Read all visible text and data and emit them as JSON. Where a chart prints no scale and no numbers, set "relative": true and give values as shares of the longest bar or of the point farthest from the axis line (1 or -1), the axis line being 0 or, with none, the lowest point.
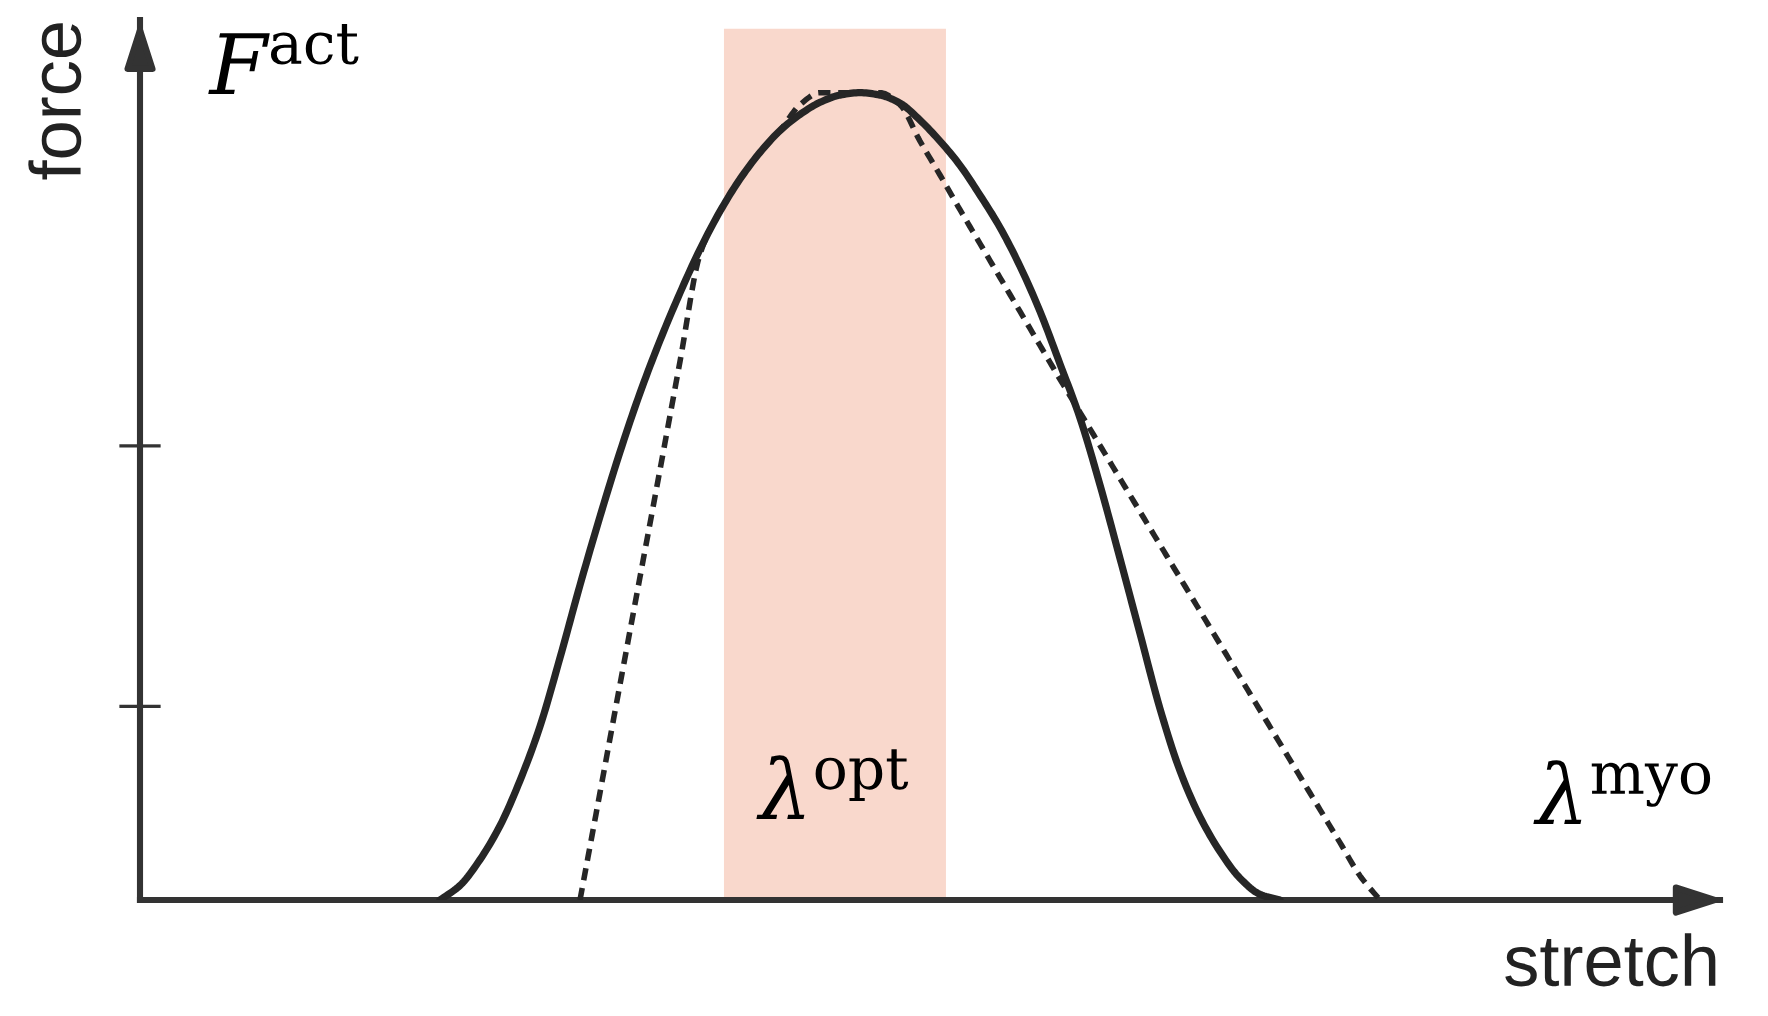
{
  "chart_data": {
    "type": "line",
    "relative": true,
    "ylabel": "force",
    "xlabel": "stretch",
    "annotations": [
      "F$^{act}$",
      "λ$^{opt}$",
      "λ$^{myo}$"
    ],
    "categories": [
      null,
      null,
      null,
      null,
      null,
      null,
      null,
      null,
      null,
      null,
      null,
      null,
      null,
      null,
      null,
      null,
      null,
      null,
      null,
      null,
      null,
      null,
      null,
      null,
      null,
      null,
      null,
      null,
      null,
      null,
      null,
      null,
      null,
      null,
      null,
      null,
      null,
      null,
      null,
      null,
      null,
      null,
      null,
      null,
      null,
      null,
      null,
      null,
      null,
      null,
      null,
      null,
      null,
      null,
      null,
      null,
      null,
      null,
      null,
      null,
      null,
      null,
      null,
      null,
      null,
      null,
      null,
      null,
      null,
      null,
      null,
      null,
      null,
      null,
      null,
      null,
      null,
      null,
      null,
      null
    ],
    "series": [
      {
        "color": "#262626",
        "line_style": "solid",
        "values": [
          null,
          null,
          null,
          null,
          null,
          null,
          null,
          null,
          null,
          null,
          null,
          null,
          null,
          null,
          null,
          0,
          0.018,
          0.05,
          0.092,
          0.148,
          0.215,
          0.3,
          0.39,
          0.475,
          0.555,
          0.628,
          0.693,
          0.752,
          0.806,
          0.853,
          0.893,
          0.926,
          0.953,
          0.973,
          0.988,
          0.997,
          1,
          0.997,
          0.987,
          0.966,
          0.94,
          0.91,
          0.873,
          0.833,
          0.785,
          0.729,
          0.664,
          0.597,
          0.514,
          0.423,
          0.33,
          0.237,
          0.16,
          0.103,
          0.06,
          0.027,
          0.007,
          0,
          null,
          null,
          null,
          null,
          null,
          null,
          null,
          null,
          null,
          null,
          null,
          null,
          null,
          null,
          null,
          null,
          null,
          null,
          null,
          null,
          null,
          null
        ]
      },
      {
        "color": "#262626",
        "line_style": "dashed",
        "values": [
          null,
          null,
          null,
          null,
          null,
          null,
          null,
          null,
          null,
          null,
          null,
          null,
          null,
          null,
          null,
          null,
          null,
          null,
          null,
          null,
          null,
          null,
          0,
          0.133,
          0.267,
          0.4,
          0.533,
          0.667,
          0.8,
          0.853,
          0.893,
          0.926,
          0.953,
          0.985,
          1,
          1,
          1,
          1,
          0.985,
          0.94,
          0.898,
          0.855,
          0.813,
          0.771,
          0.729,
          0.687,
          0.645,
          0.604,
          0.563,
          0.522,
          0.481,
          0.44,
          0.399,
          0.358,
          0.317,
          0.276,
          0.235,
          0.194,
          0.153,
          0.112,
          0.071,
          0.03,
          0,
          null,
          null,
          null,
          null,
          null,
          null,
          null,
          null,
          null,
          null,
          null,
          null,
          null,
          null,
          null,
          null,
          null
        ]
      }
    ]
  }
}
